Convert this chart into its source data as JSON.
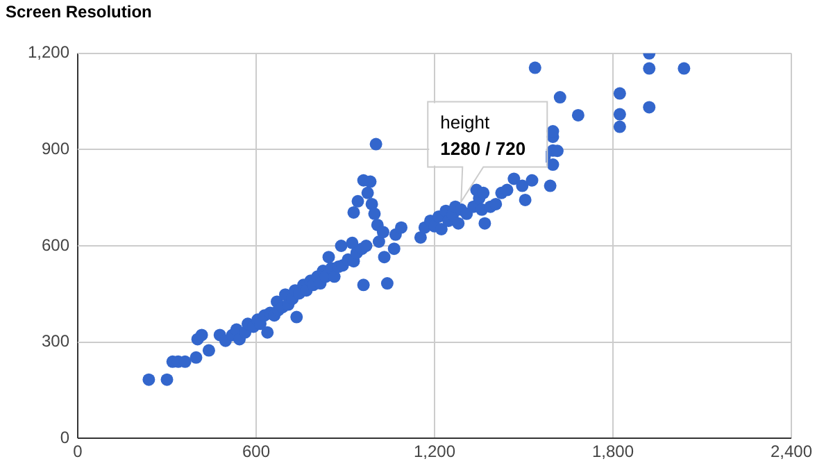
{
  "chart_data": {
    "type": "scatter",
    "title": "Screen Resolution",
    "xlim": [
      0,
      2400
    ],
    "ylim": [
      0,
      1200
    ],
    "xticks": [
      0,
      600,
      {
        "value": 1200,
        "label": "1,200"
      },
      {
        "value": 1800,
        "label": "1,800"
      },
      {
        "value": 2400,
        "label": "2,400"
      }
    ],
    "yticks": [
      0,
      300,
      600,
      900,
      {
        "value": 1200,
        "label": "1,200"
      }
    ],
    "grid": true,
    "marker": "circle",
    "legend": false,
    "annotations": [
      "height",
      {
        "text": "1280 / 720",
        "x": 1280,
        "y": 720
      }
    ],
    "series": [
      {
        "color": "#3366cc",
        "x": [
          239,
          300,
          319,
          338,
          361,
          398,
          403,
          417,
          441,
          478,
          497,
          520,
          534,
          544,
          563,
          572,
          591,
          605,
          614,
          628,
          638,
          647,
          661,
          670,
          675,
          689,
          698,
          708,
          722,
          731,
          736,
          745,
          759,
          769,
          783,
          792,
          806,
          816,
          825,
          834,
          844,
          853,
          863,
          877,
          886,
          891,
          909,
          923,
          928,
          938,
          956,
          961,
          970,
          928,
          942,
          961,
          984,
          975,
          989,
          998,
          1008,
          1013,
          1027,
          1031,
          1041,
          1064,
          1069,
          1088,
          1003,
          1153,
          1167,
          1186,
          1200,
          1214,
          1223,
          1238,
          1247,
          1261,
          1270,
          1280,
          1289,
          1308,
          1331,
          1341,
          1350,
          null,
          null,
          1364,
          1359,
          1369,
          1388,
          1406,
          1425,
          1444,
          1467,
          1495,
          1505,
          1528,
          1538,
          1598,
          1598,
          1598,
          1598,
          1622,
          1683,
          1823,
          1823,
          1823,
          1922,
          1922,
          1922,
          2039,
          1589,
          1570,
          1613
        ],
        "values": [
          183,
          183,
          239,
          239,
          239,
          252,
          309,
          322,
          274,
          322,
          304,
          322,
          339,
          309,
          330,
          357,
          348,
          370,
          357,
          383,
          330,
          391,
          383,
          426,
          400,
          409,
          448,
          417,
          435,
          461,
          378,
          452,
          478,
          461,
          491,
          478,
          504,
          483,
          522,
          504,
          565,
          530,
          504,
          535,
          600,
          539,
          557,
          609,
          552,
          578,
          591,
          478,
          600,
          704,
          739,
          804,
          800,
          765,
          730,
          700,
          665,
          613,
          643,
          565,
          483,
          591,
          635,
          657,
          917,
          626,
          657,
          678,
          661,
          691,
          652,
          709,
          678,
          696,
          722,
          670,
          713,
          700,
          722,
          774,
          748,
          null,
          null,
          765,
          713,
          670,
          722,
          730,
          765,
          774,
          809,
          787,
          743,
          804,
          1155,
          940,
          957,
          897,
          853,
          1063,
          1007,
          1075,
          1010,
          971,
          1200,
          1153,
          1032,
          1153,
          787,
          878,
          896
        ]
      }
    ]
  }
}
